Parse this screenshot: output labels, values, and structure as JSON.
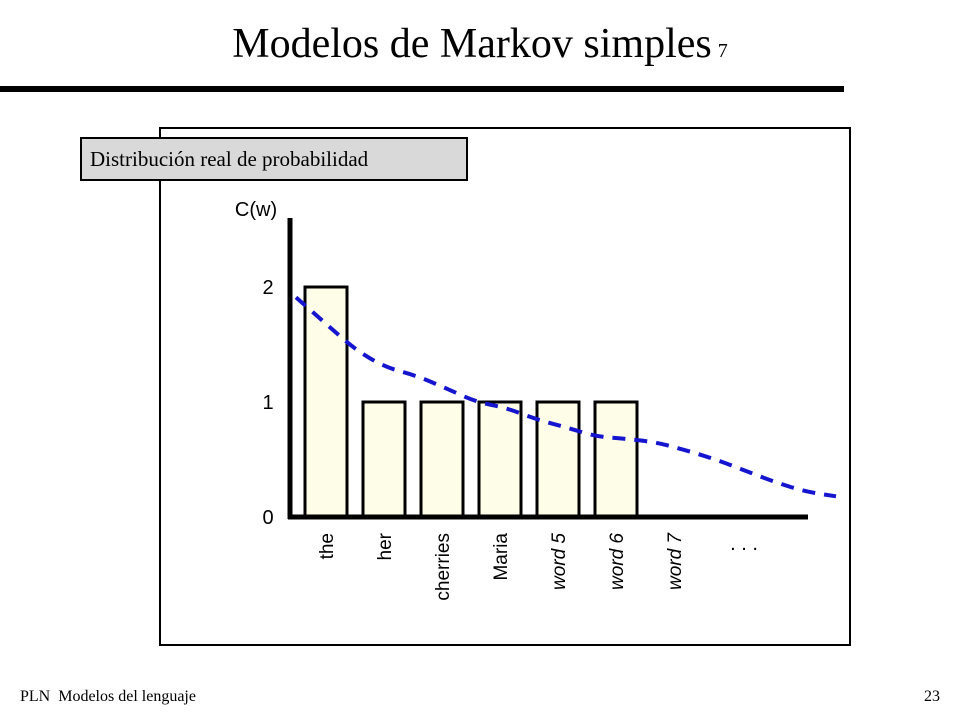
{
  "slide": {
    "title": "Modelos de Markov simples",
    "title_sub": "7",
    "caption": "Distribución real de probabilidad",
    "footer_left": "PLN  Modelos del lenguaje",
    "page_number": "23"
  },
  "chart_data": {
    "type": "bar",
    "title": "",
    "ylabel": "C(w)",
    "xlabel": "",
    "categories": [
      "the",
      "her",
      "cherries",
      "Maria",
      "word 5",
      "word 6",
      "word 7",
      ". . ."
    ],
    "italic_categories": [
      "word 5",
      "word 6",
      "word 7"
    ],
    "values": [
      2,
      1,
      1,
      1,
      1,
      1,
      0,
      null
    ],
    "yticks": [
      0,
      1,
      2
    ],
    "ylim": [
      0,
      2.5
    ],
    "bar_fill": "#fdfde8",
    "bar_stroke": "#000000",
    "smoothed_curve": {
      "color": "#1515d0",
      "style": "dashed",
      "x_positions": [
        0,
        0.5,
        1,
        1.5,
        2,
        2.5,
        3,
        3.5,
        4,
        4.5,
        5,
        5.5,
        6,
        6.5,
        7,
        7.5,
        8,
        8.5,
        9
      ],
      "values": [
        1.91,
        1.68,
        1.45,
        1.3,
        1.23,
        1.12,
        1.0,
        0.95,
        0.85,
        0.78,
        0.7,
        0.68,
        0.65,
        0.58,
        0.5,
        0.4,
        0.3,
        0.22,
        0.18
      ]
    }
  }
}
